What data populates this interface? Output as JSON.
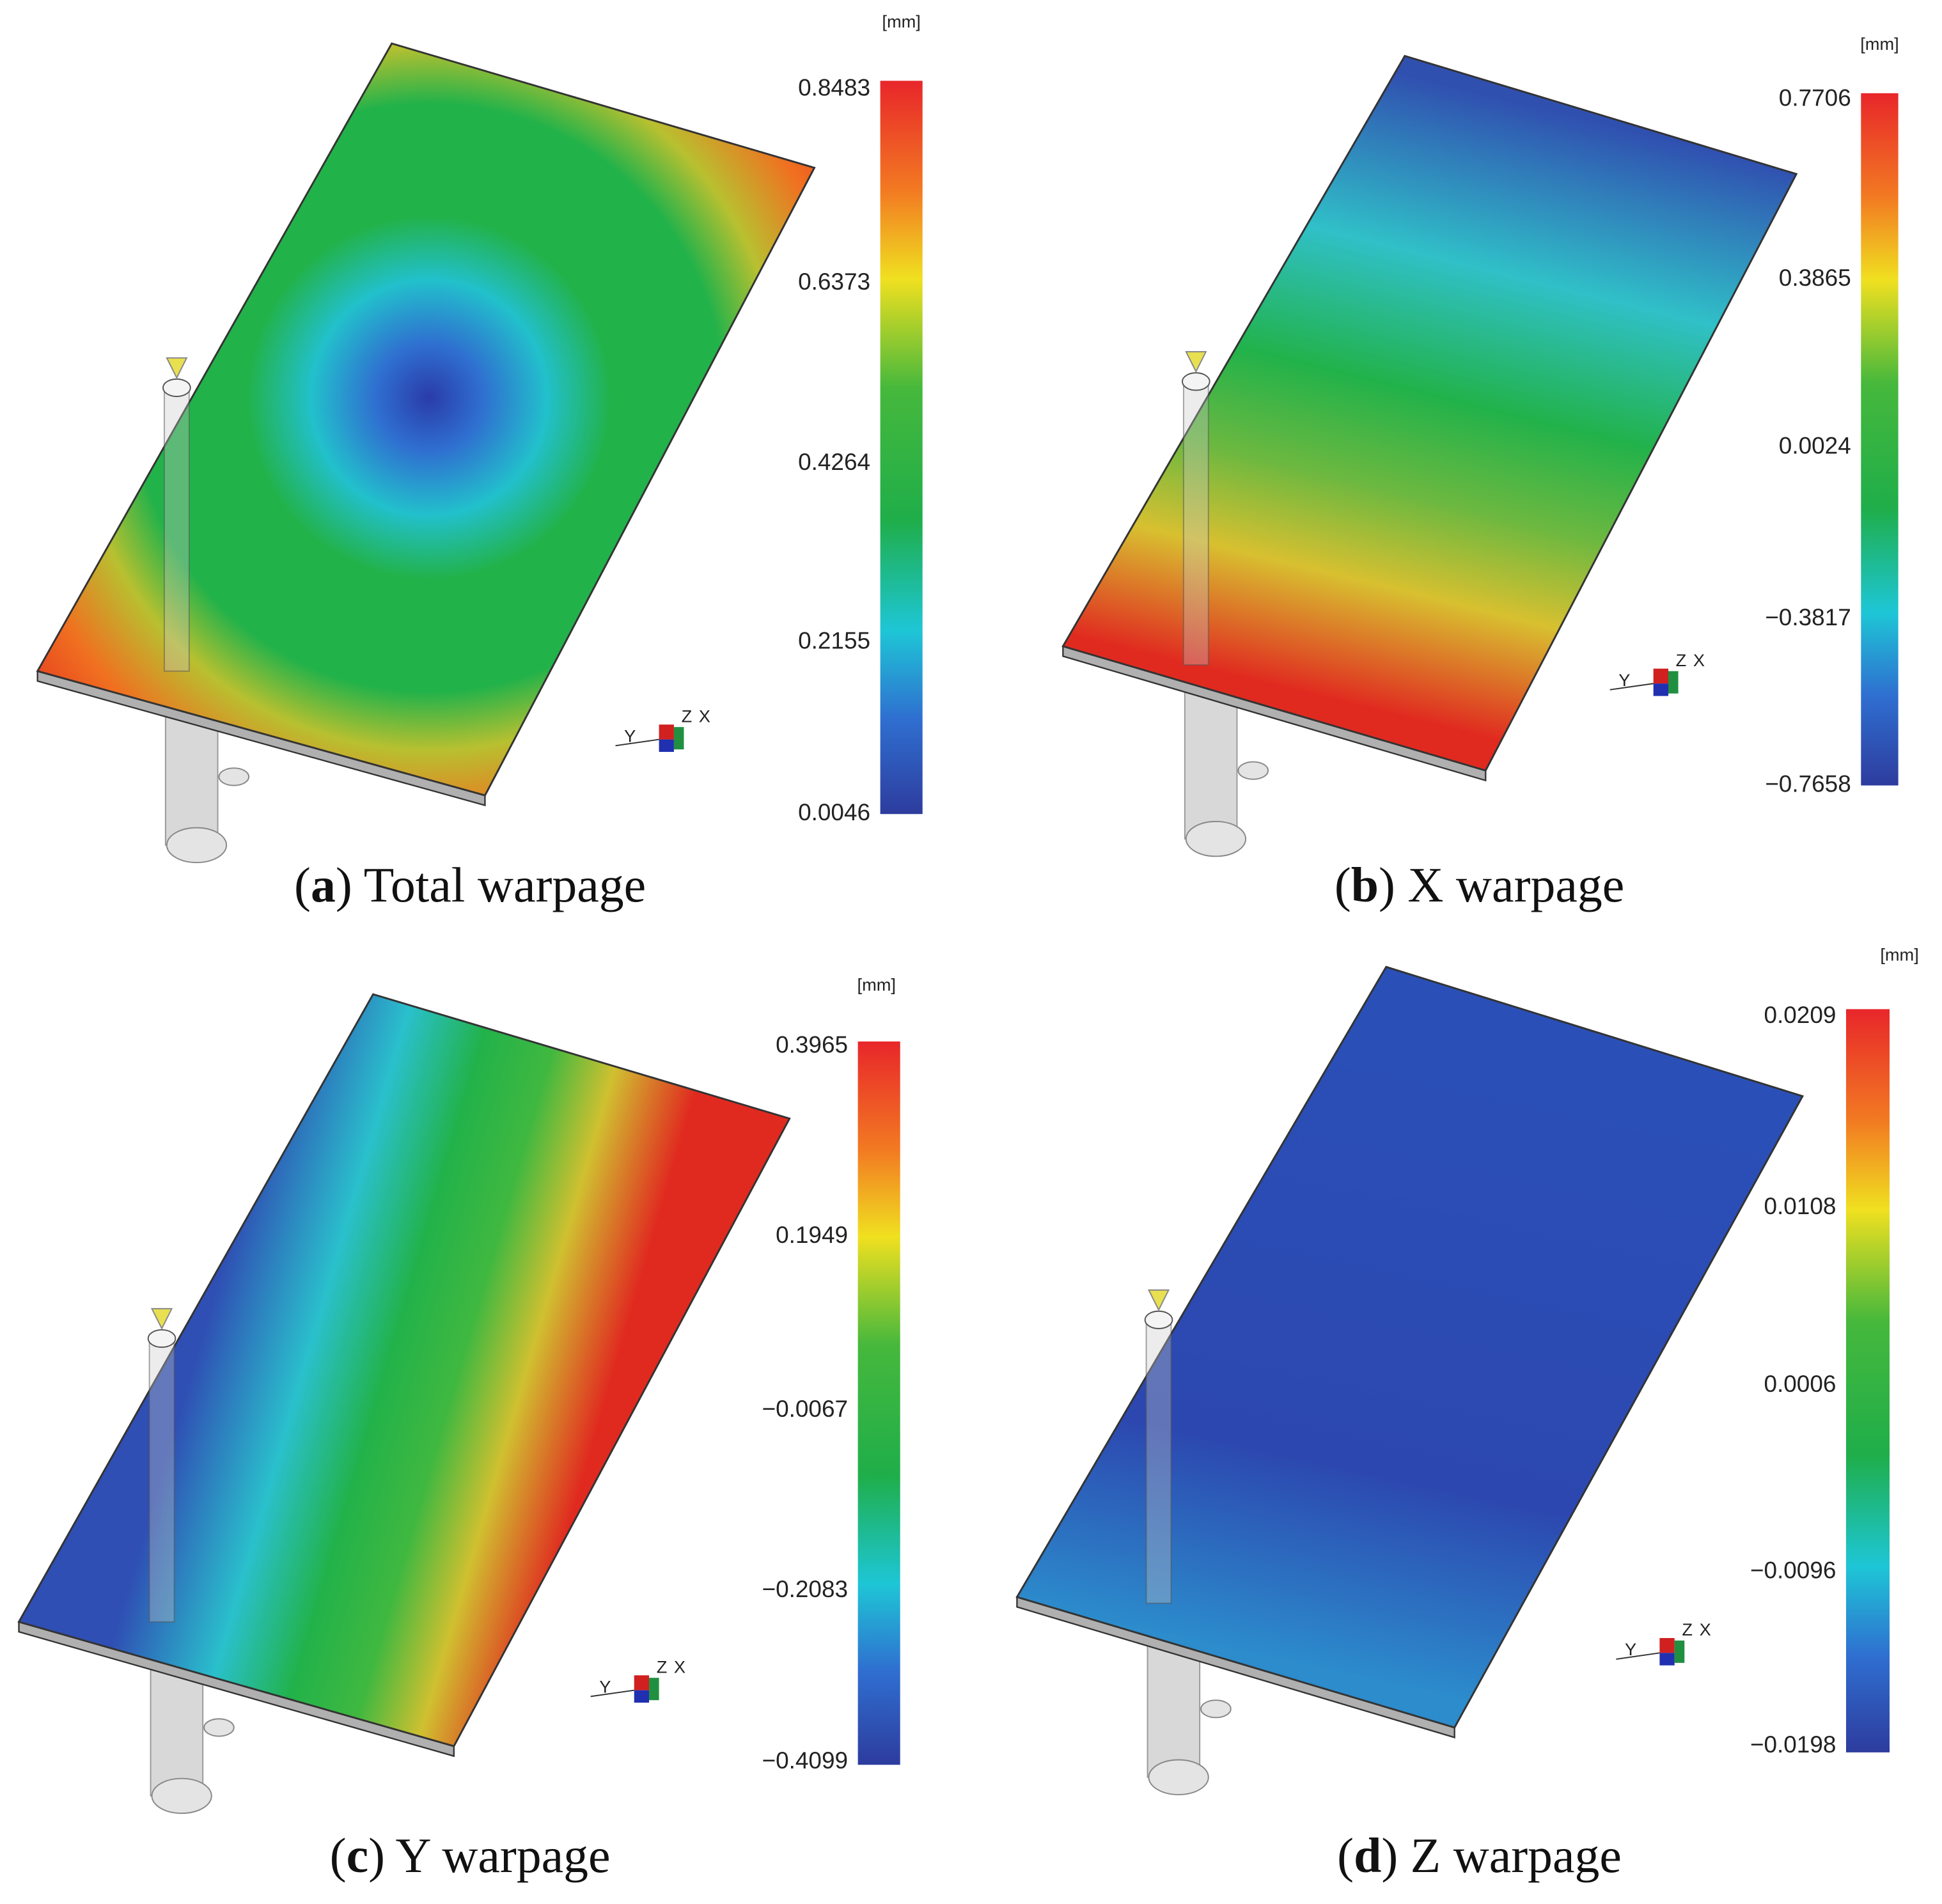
{
  "panels": [
    {
      "caption": [
        "(",
        "a",
        ") Total warpage"
      ],
      "unit": "[mm]",
      "scale": [
        "0.8483",
        "0.6373",
        "0.4264",
        "0.2155",
        "0.0046"
      ]
    },
    {
      "caption": [
        "(",
        "b",
        ") X warpage"
      ],
      "unit": "[mm]",
      "scale": [
        "0.7706",
        "0.3865",
        "0.0024",
        "−0.3817",
        "−0.7658"
      ]
    },
    {
      "caption": [
        "(",
        "c",
        ") Y warpage"
      ],
      "unit": "[mm]",
      "scale": [
        "0.3965",
        "0.1949",
        "−0.0067",
        "−0.2083",
        "−0.4099"
      ]
    },
    {
      "caption": [
        "(",
        "d",
        ") Z warpage"
      ],
      "unit": "[mm]",
      "scale": [
        "0.0209",
        "0.0108",
        "0.0006",
        "−0.0096",
        "−0.0198"
      ]
    }
  ],
  "axis_triad": {
    "y": "Y",
    "z": "Z",
    "x": "X"
  }
}
